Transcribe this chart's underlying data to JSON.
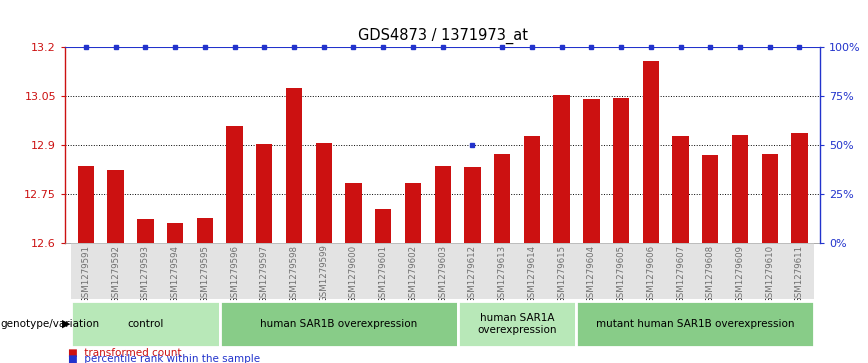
{
  "title": "GDS4873 / 1371973_at",
  "samples": [
    "GSM1279591",
    "GSM1279592",
    "GSM1279593",
    "GSM1279594",
    "GSM1279595",
    "GSM1279596",
    "GSM1279597",
    "GSM1279598",
    "GSM1279599",
    "GSM1279600",
    "GSM1279601",
    "GSM1279602",
    "GSM1279603",
    "GSM1279612",
    "GSM1279613",
    "GSM1279614",
    "GSM1279615",
    "GSM1279604",
    "GSM1279605",
    "GSM1279606",
    "GSM1279607",
    "GSM1279608",
    "GSM1279609",
    "GSM1279610",
    "GSM1279611"
  ],
  "bar_values": [
    12.835,
    12.825,
    12.675,
    12.663,
    12.677,
    12.96,
    12.905,
    13.076,
    12.907,
    12.785,
    12.705,
    12.783,
    12.835,
    12.832,
    12.872,
    12.928,
    13.055,
    13.04,
    13.043,
    13.158,
    12.928,
    12.87,
    12.93,
    12.874,
    12.936
  ],
  "percentile_values": [
    100,
    100,
    100,
    100,
    100,
    100,
    100,
    100,
    100,
    100,
    100,
    100,
    100,
    50,
    100,
    100,
    100,
    100,
    100,
    100,
    100,
    100,
    100,
    100,
    100
  ],
  "ylim": [
    12.6,
    13.2
  ],
  "yticks_left": [
    12.6,
    12.75,
    12.9,
    13.05,
    13.2
  ],
  "yticks_right": [
    0,
    25,
    50,
    75,
    100
  ],
  "bar_color": "#cc1111",
  "dot_color": "#2233cc",
  "groups": [
    {
      "label": "control",
      "start": 0,
      "end": 4
    },
    {
      "label": "human SAR1B overexpression",
      "start": 5,
      "end": 12
    },
    {
      "label": "human SAR1A\noverexpression",
      "start": 13,
      "end": 16
    },
    {
      "label": "mutant human SAR1B overexpression",
      "start": 17,
      "end": 24
    }
  ],
  "group_colors": [
    "#b8e8b8",
    "#88cc88",
    "#b8e8b8",
    "#88cc88"
  ],
  "title_fontsize": 10.5,
  "bar_width": 0.55
}
